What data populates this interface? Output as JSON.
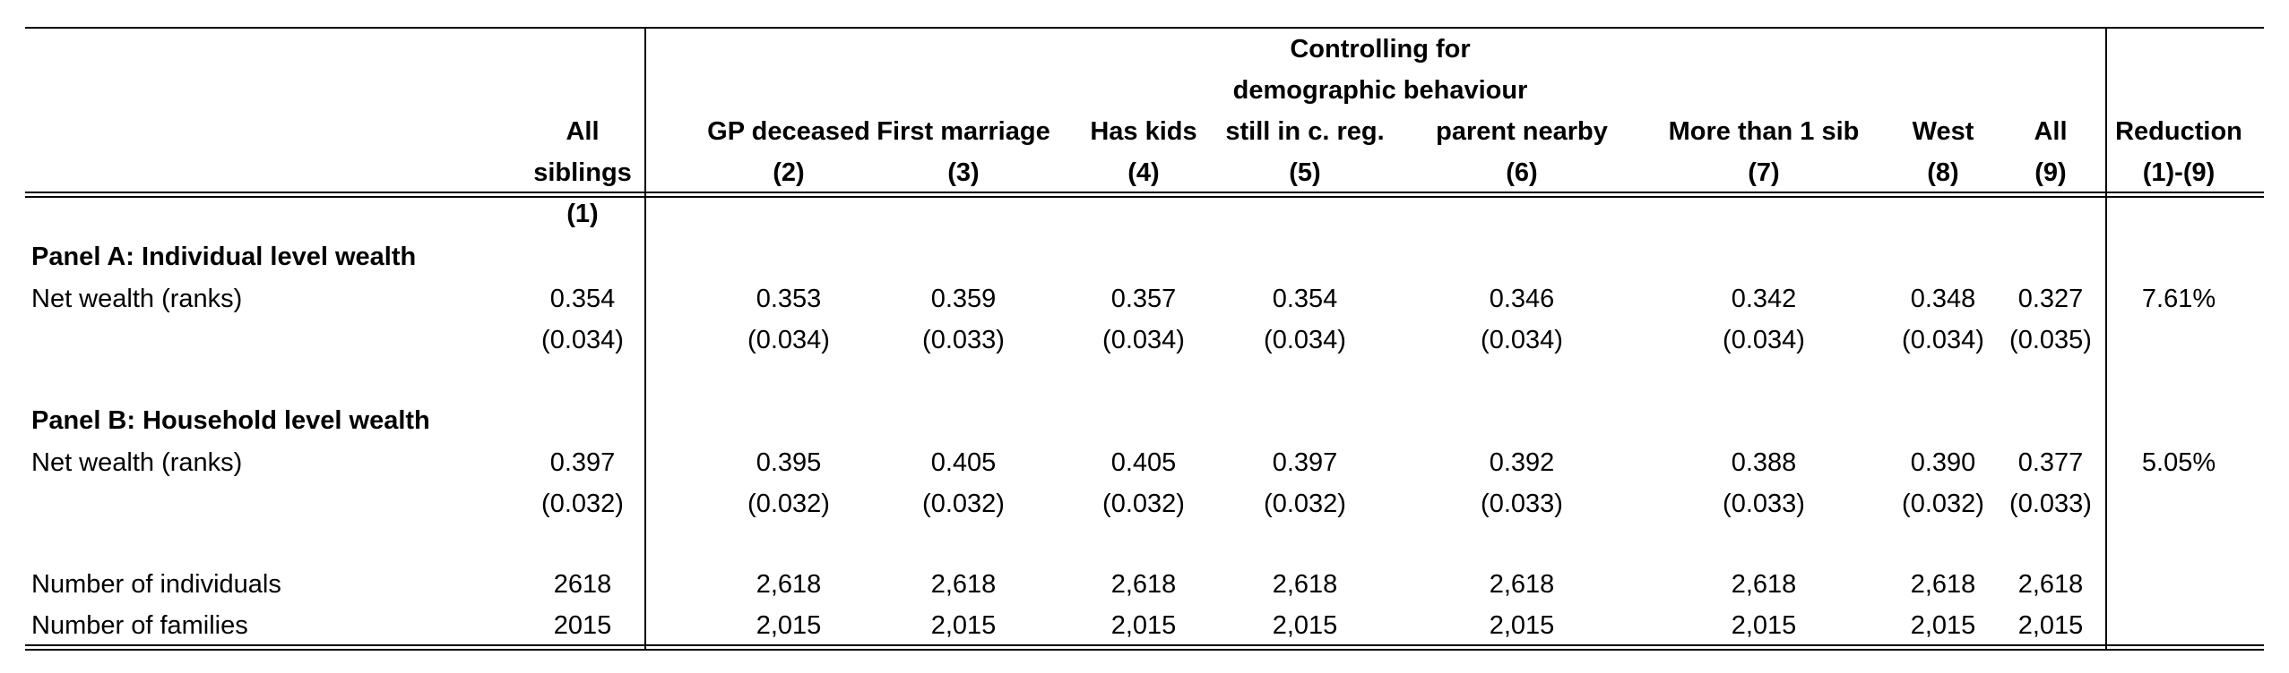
{
  "header": {
    "group_title_line1": "Controlling for",
    "group_title_line2": "demographic behaviour",
    "col1": {
      "line1": "All",
      "line2": "siblings",
      "num": "(1)"
    },
    "col2": {
      "label": "GP deceased",
      "num": "(2)"
    },
    "col3": {
      "label": "First marriage",
      "num": "(3)"
    },
    "col4": {
      "label": "Has kids",
      "num": "(4)"
    },
    "col5": {
      "label": "still in c. reg.",
      "num": "(5)"
    },
    "col6": {
      "label": "parent nearby",
      "num": "(6)"
    },
    "col7": {
      "label": "More than 1 sib",
      "num": "(7)"
    },
    "col8": {
      "label": "West",
      "num": "(8)"
    },
    "col9": {
      "label": "All",
      "num": "(9)"
    },
    "col10": {
      "label": "Reduction",
      "num": "(1)-(9)"
    }
  },
  "panel_a": {
    "title": "Panel A: Individual level wealth",
    "row_label": "Net wealth (ranks)",
    "coef": [
      "0.354",
      "0.353",
      "0.359",
      "0.357",
      "0.354",
      "0.346",
      "0.342",
      "0.348",
      "0.327"
    ],
    "se": [
      "(0.034)",
      "(0.034)",
      "(0.033)",
      "(0.034)",
      "(0.034)",
      "(0.034)",
      "(0.034)",
      "(0.034)",
      "(0.035)"
    ],
    "reduction": "7.61%"
  },
  "panel_b": {
    "title": "Panel B: Household level wealth",
    "row_label": "Net wealth (ranks)",
    "coef": [
      "0.397",
      "0.395",
      "0.405",
      "0.405",
      "0.397",
      "0.392",
      "0.388",
      "0.390",
      "0.377"
    ],
    "se": [
      "(0.032)",
      "(0.032)",
      "(0.032)",
      "(0.032)",
      "(0.032)",
      "(0.033)",
      "(0.033)",
      "(0.032)",
      "(0.033)"
    ],
    "reduction": "5.05%"
  },
  "footer": {
    "individuals": {
      "label": "Number of individuals",
      "values": [
        "2618",
        "2,618",
        "2,618",
        "2,618",
        "2,618",
        "2,618",
        "2,618",
        "2,618",
        "2,618"
      ]
    },
    "families": {
      "label": "Number of families",
      "values": [
        "2015",
        "2,015",
        "2,015",
        "2,015",
        "2,015",
        "2,015",
        "2,015",
        "2,015",
        "2,015"
      ]
    }
  }
}
